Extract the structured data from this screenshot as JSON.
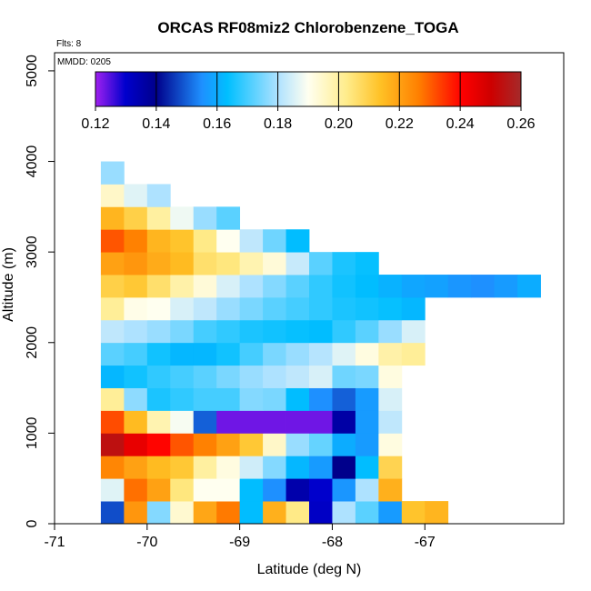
{
  "chart_data": {
    "type": "heatmap",
    "title": "ORCAS RF08miz2 Chlorobenzene_TOGA",
    "flights_label": "Flts: 8",
    "date_label": "MMDD: 0205",
    "xlabel": "Latitude (deg N)",
    "ylabel": "Altitude (m)",
    "xlim": [
      -71,
      -65.5
    ],
    "ylim": [
      0,
      5200
    ],
    "xticks": [
      "-71",
      "-70",
      "-69",
      "-68",
      "-67"
    ],
    "yticks": [
      "0",
      "1000",
      "2000",
      "3000",
      "4000",
      "5000"
    ],
    "xtick_values": [
      -71,
      -70,
      -69,
      -68,
      -67
    ],
    "ytick_values": [
      0,
      1000,
      2000,
      3000,
      4000,
      5000
    ],
    "bin_size_lat": 0.25,
    "bin_size_alt": 250,
    "colorbar": {
      "range": [
        0.12,
        0.26
      ],
      "ticks": [
        "0.12",
        "0.14",
        "0.16",
        "0.18",
        "0.20",
        "0.22",
        "0.24",
        "0.26"
      ],
      "tick_values": [
        0.12,
        0.14,
        0.16,
        0.18,
        0.2,
        0.22,
        0.24,
        0.26
      ]
    },
    "rows": [
      {
        "alt": 0,
        "lat_start": -70.5,
        "values": [
          0.148,
          0.222,
          0.176,
          0.194,
          0.219,
          0.227,
          0.163,
          0.217,
          0.203,
          0.131,
          0.18,
          0.172,
          0.157,
          0.213,
          0.216
        ]
      },
      {
        "alt": 250,
        "lat_start": -70.5,
        "values": [
          0.186,
          0.228,
          0.22,
          0.204,
          0.19,
          0.19,
          0.163,
          0.155,
          0.135,
          0.13,
          0.156,
          0.18,
          0.217
        ]
      },
      {
        "alt": 500,
        "lat_start": -70.5,
        "values": [
          0.225,
          0.22,
          0.215,
          0.212,
          0.2,
          0.192,
          0.184,
          0.176,
          0.162,
          0.157,
          0.14,
          0.163,
          0.209
        ]
      },
      {
        "alt": 750,
        "lat_start": -70.5,
        "values": [
          0.254,
          0.245,
          0.24,
          0.231,
          0.226,
          0.22,
          0.212,
          0.195,
          0.178,
          0.173,
          0.16,
          0.157,
          0.192
        ]
      },
      {
        "alt": 1000,
        "lat_start": -70.5,
        "values": [
          0.232,
          0.215,
          0.198,
          0.189,
          0.15,
          0.123,
          0.123,
          0.123,
          0.123,
          0.123,
          0.136,
          0.157,
          0.182
        ]
      },
      {
        "alt": 1250,
        "lat_start": -70.5,
        "values": [
          0.201,
          0.177,
          0.166,
          0.168,
          0.17,
          0.17,
          0.176,
          0.175,
          0.163,
          0.155,
          0.15,
          0.157,
          0.185
        ]
      },
      {
        "alt": 1500,
        "lat_start": -70.5,
        "values": [
          0.162,
          0.165,
          0.168,
          0.17,
          0.172,
          0.175,
          0.178,
          0.18,
          0.182,
          0.185,
          0.174,
          0.175,
          0.192
        ]
      },
      {
        "alt": 1750,
        "lat_start": -70.5,
        "values": [
          0.172,
          0.17,
          0.165,
          0.162,
          0.162,
          0.165,
          0.17,
          0.175,
          0.178,
          0.181,
          0.186,
          0.192,
          0.199,
          0.201
        ]
      },
      {
        "alt": 2000,
        "lat_start": -70.5,
        "values": [
          0.182,
          0.18,
          0.178,
          0.175,
          0.17,
          0.168,
          0.166,
          0.165,
          0.164,
          0.163,
          0.168,
          0.172,
          0.178,
          0.185
        ]
      },
      {
        "alt": 2250,
        "lat_start": -70.5,
        "values": [
          0.201,
          0.191,
          0.19,
          0.185,
          0.182,
          0.178,
          0.175,
          0.172,
          0.17,
          0.168,
          0.166,
          0.165,
          0.164,
          0.162
        ]
      },
      {
        "alt": 2500,
        "lat_start": -70.5,
        "values": [
          0.21,
          0.212,
          0.206,
          0.199,
          0.193,
          0.185,
          0.18,
          0.176,
          0.172,
          0.168,
          0.165,
          0.163,
          0.161,
          0.159,
          0.158,
          0.156,
          0.155,
          0.157,
          0.16
        ]
      },
      {
        "alt": 2750,
        "lat_start": -70.5,
        "values": [
          0.22,
          0.222,
          0.218,
          0.215,
          0.206,
          0.204,
          0.198,
          0.193,
          0.183,
          0.172,
          0.166,
          0.164
        ]
      },
      {
        "alt": 3000,
        "lat_start": -70.5,
        "values": [
          0.231,
          0.226,
          0.216,
          0.213,
          0.203,
          0.19,
          0.182,
          0.174,
          0.163
        ]
      },
      {
        "alt": 3250,
        "lat_start": -70.5,
        "values": [
          0.216,
          0.21,
          0.2,
          0.188,
          0.178,
          0.172
        ]
      },
      {
        "alt": 3500,
        "lat_start": -70.5,
        "values": [
          0.195,
          0.186,
          0.18
        ]
      },
      {
        "alt": 3750,
        "lat_start": -70.5,
        "values": [
          0.178
        ]
      }
    ]
  }
}
